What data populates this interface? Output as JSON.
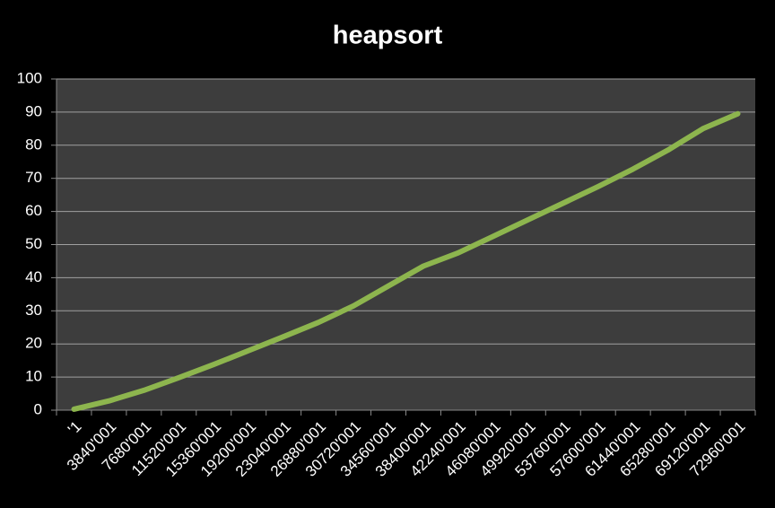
{
  "chart_data": {
    "type": "line",
    "title": "heapsort",
    "categories": [
      "'1",
      "3840'001",
      "7680'001",
      "11520'001",
      "15360'001",
      "19200'001",
      "23040'001",
      "26880'001",
      "30720'001",
      "34560'001",
      "38400'001",
      "42240'001",
      "46080'001",
      "49920'001",
      "53760'001",
      "57600'001",
      "61440'001",
      "65280'001",
      "69120'001",
      "72960'001"
    ],
    "values": [
      0.3,
      2.8,
      6,
      9.8,
      13.8,
      18,
      22.2,
      26.5,
      31.5,
      37.5,
      43.5,
      47.5,
      52.5,
      57.5,
      62.5,
      67.5,
      72.8,
      78.5,
      85,
      89.5
    ],
    "color": "#8db54e",
    "ylim": [
      0,
      100
    ],
    "yticks": [
      0,
      10,
      20,
      30,
      40,
      50,
      60,
      70,
      80,
      90,
      100
    ],
    "grid": true
  }
}
